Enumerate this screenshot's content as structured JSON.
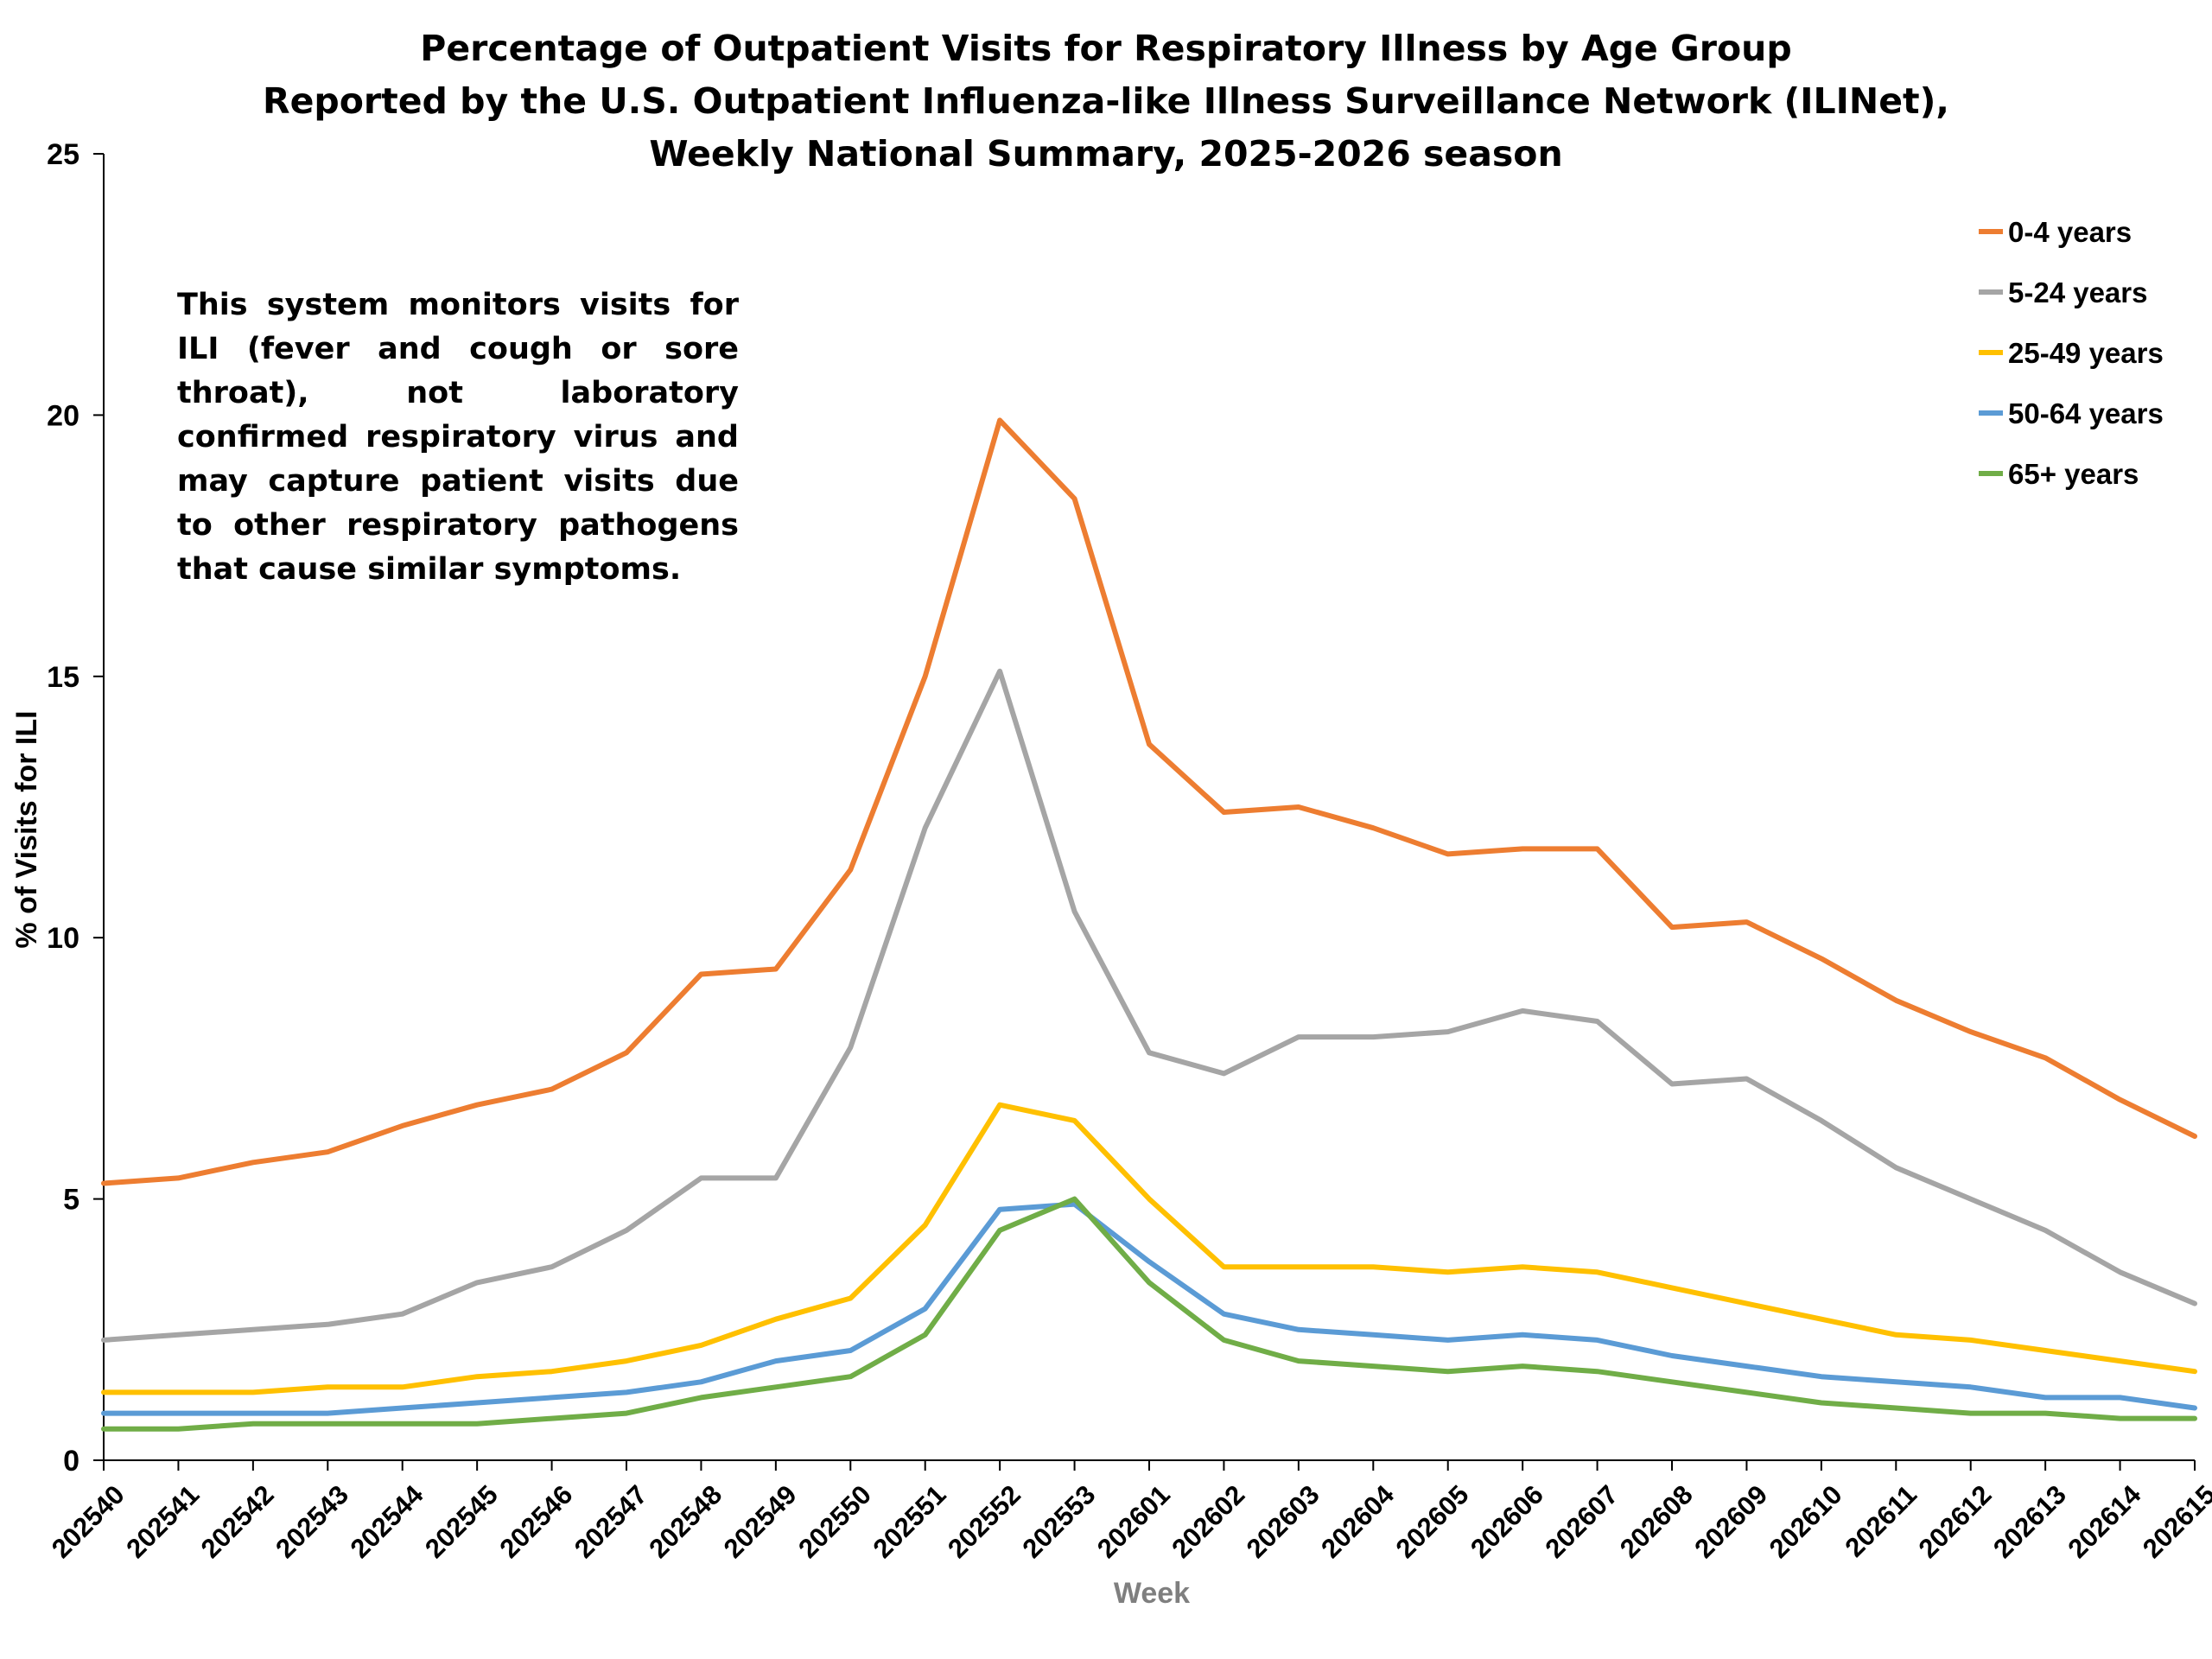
{
  "chart_data": {
    "type": "line",
    "title": [
      "Percentage of Outpatient Visits for Respiratory Illness by Age Group",
      "Reported by the U.S. Outpatient Influenza-like Illness Surveillance Network (ILINet),",
      "Weekly National Summary, 2025-2026 season"
    ],
    "annotation": "This system monitors visits for ILI (fever and cough or sore throat), not laboratory confirmed respiratory virus and may capture patient visits due to other respiratory pathogens that cause similar symptoms.",
    "xlabel": "Week",
    "ylabel": "% of Visits for ILI",
    "ylim": [
      0,
      25
    ],
    "yticks": [
      0,
      5,
      10,
      15,
      20,
      25
    ],
    "grid": false,
    "legend_position": "top-right",
    "categories": [
      "202540",
      "202541",
      "202542",
      "202543",
      "202544",
      "202545",
      "202546",
      "202547",
      "202548",
      "202549",
      "202550",
      "202551",
      "202552",
      "202553",
      "202601",
      "202602",
      "202603",
      "202604",
      "202605",
      "202606",
      "202607",
      "202608",
      "202609",
      "202610",
      "202611",
      "202612",
      "202613",
      "202614",
      "202615"
    ],
    "series": [
      {
        "name": "0-4 years",
        "color": "#ED7D31",
        "values": [
          5.3,
          5.4,
          5.7,
          5.9,
          6.4,
          6.8,
          7.1,
          7.8,
          9.3,
          9.4,
          11.3,
          15.0,
          19.9,
          18.4,
          13.7,
          12.4,
          12.5,
          12.1,
          11.6,
          11.7,
          11.7,
          10.2,
          10.3,
          9.6,
          8.8,
          8.2,
          7.7,
          6.9,
          6.2
        ]
      },
      {
        "name": "5-24 years",
        "color": "#A5A5A5",
        "values": [
          2.3,
          2.4,
          2.5,
          2.6,
          2.8,
          3.4,
          3.7,
          4.4,
          5.4,
          5.4,
          7.9,
          12.1,
          15.1,
          10.5,
          7.8,
          7.4,
          8.1,
          8.1,
          8.2,
          8.6,
          8.4,
          7.2,
          7.3,
          6.5,
          5.6,
          5.0,
          4.4,
          3.6,
          3.0
        ]
      },
      {
        "name": "25-49 years",
        "color": "#FFC000",
        "values": [
          1.3,
          1.3,
          1.3,
          1.4,
          1.4,
          1.6,
          1.7,
          1.9,
          2.2,
          2.7,
          3.1,
          4.5,
          6.8,
          6.5,
          5.0,
          3.7,
          3.7,
          3.7,
          3.6,
          3.7,
          3.6,
          3.3,
          3.0,
          2.7,
          2.4,
          2.3,
          2.1,
          1.9,
          1.7
        ]
      },
      {
        "name": "50-64 years",
        "color": "#5B9BD5",
        "values": [
          0.9,
          0.9,
          0.9,
          0.9,
          1.0,
          1.1,
          1.2,
          1.3,
          1.5,
          1.9,
          2.1,
          2.9,
          4.8,
          4.9,
          3.8,
          2.8,
          2.5,
          2.4,
          2.3,
          2.4,
          2.3,
          2.0,
          1.8,
          1.6,
          1.5,
          1.4,
          1.2,
          1.2,
          1.0
        ]
      },
      {
        "name": "65+ years",
        "color": "#70AD47",
        "values": [
          0.6,
          0.6,
          0.7,
          0.7,
          0.7,
          0.7,
          0.8,
          0.9,
          1.2,
          1.4,
          1.6,
          2.4,
          4.4,
          5.0,
          3.4,
          2.3,
          1.9,
          1.8,
          1.7,
          1.8,
          1.7,
          1.5,
          1.3,
          1.1,
          1.0,
          0.9,
          0.9,
          0.8,
          0.8
        ]
      }
    ]
  }
}
